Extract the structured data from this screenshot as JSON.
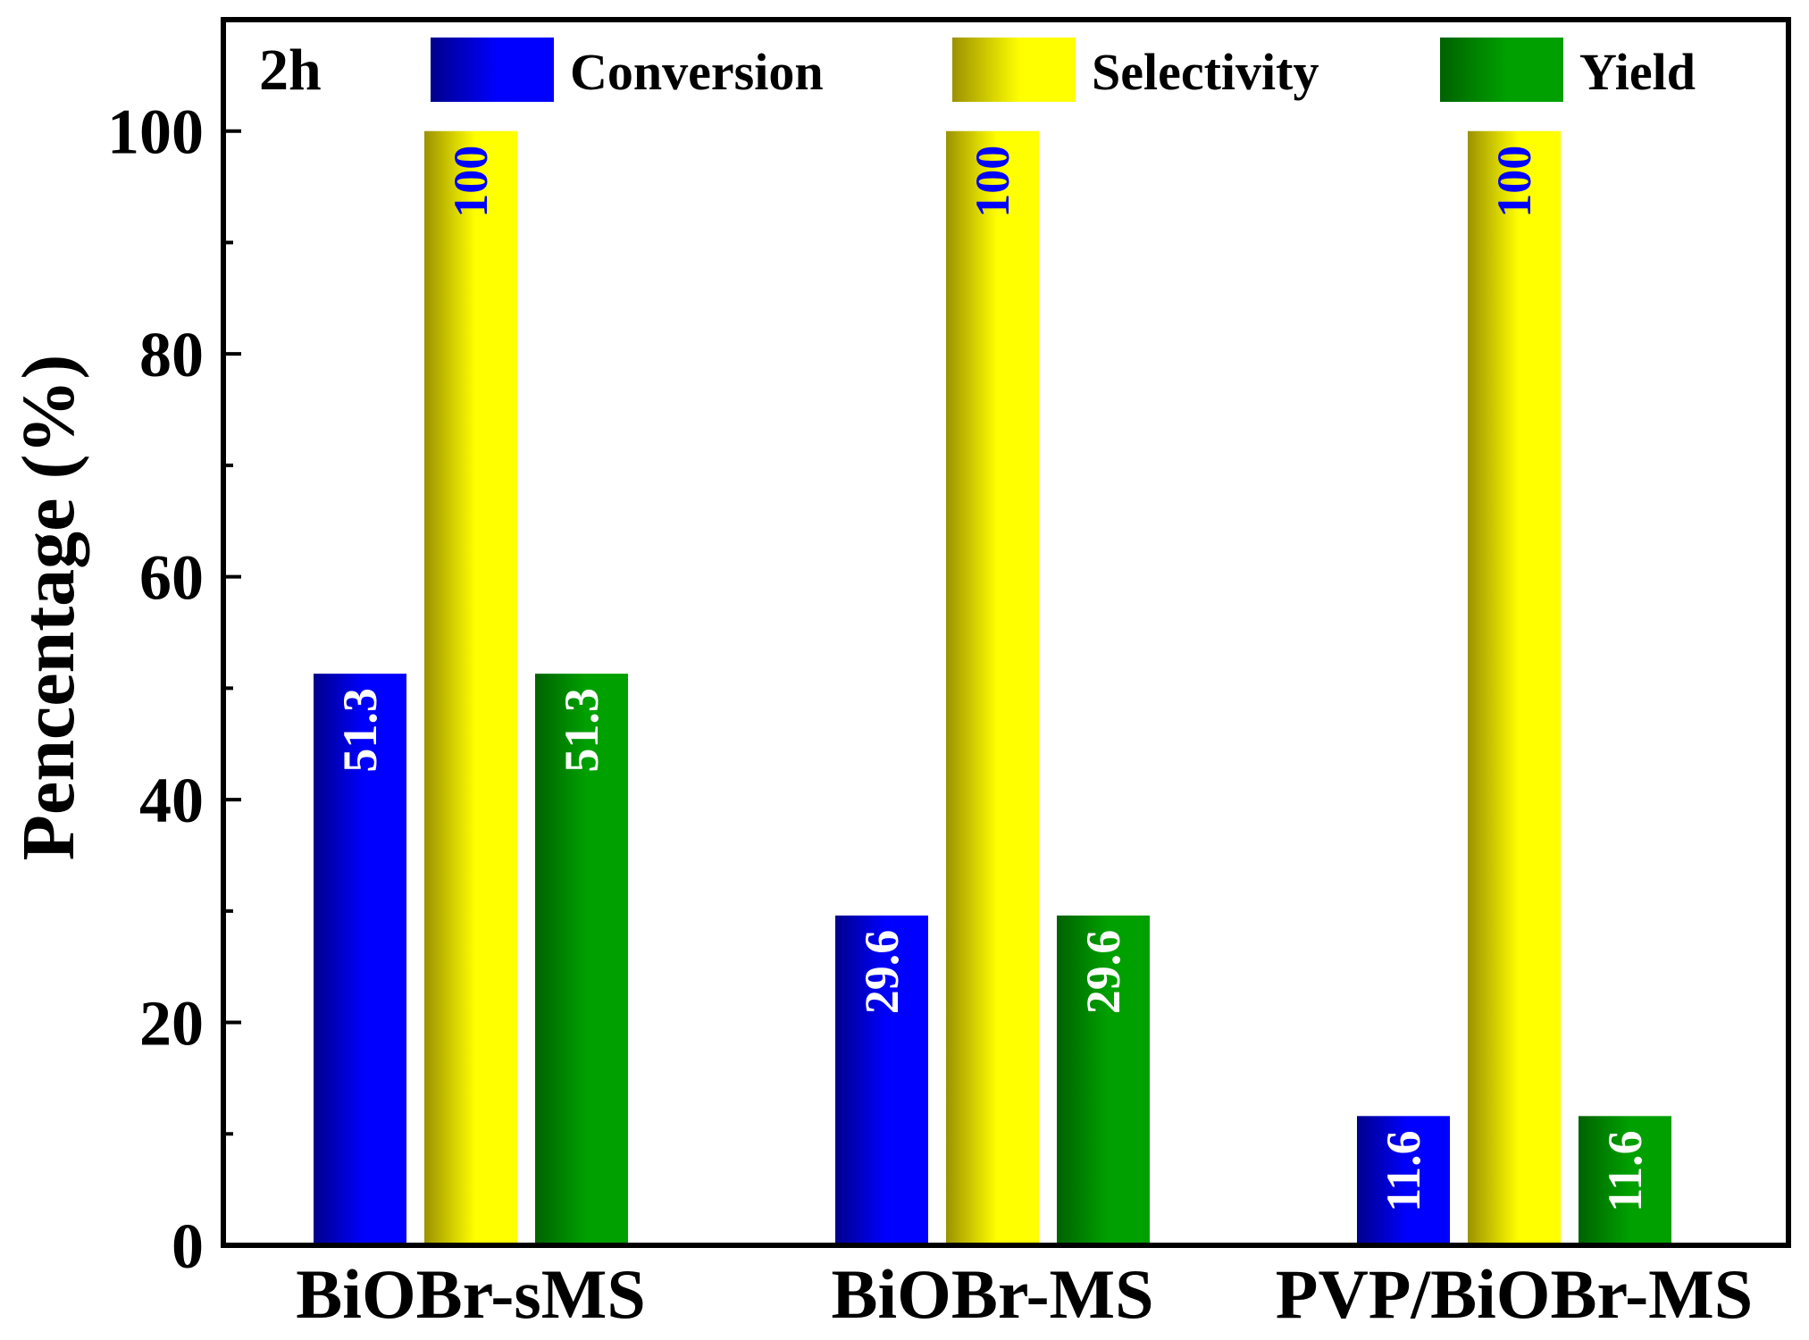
{
  "chart_data": {
    "type": "bar",
    "panel_label": "2h",
    "ylabel": "Pencentage (%)",
    "xlabel": "",
    "ylim": [
      0,
      110
    ],
    "yticks": [
      0,
      20,
      40,
      60,
      80,
      100
    ],
    "categories": [
      "BiOBr-sMS",
      "BiOBr-MS",
      "PVP/BiOBr-MS"
    ],
    "series": [
      {
        "name": "Conversion",
        "values": [
          51.3,
          29.6,
          11.6
        ],
        "labels": [
          "51.3",
          "29.6",
          "11.6"
        ],
        "color": "#0000ff",
        "dark": "#00008c",
        "label_color": "#ffffff"
      },
      {
        "name": "Selectivity",
        "values": [
          100,
          100,
          100
        ],
        "labels": [
          "100",
          "100",
          "100"
        ],
        "color": "#ffff00",
        "dark": "#9c9200",
        "label_color": "#0000ff"
      },
      {
        "name": "Yield",
        "values": [
          51.3,
          29.6,
          11.6
        ],
        "labels": [
          "51.3",
          "29.6",
          "11.6"
        ],
        "color": "#00a000",
        "dark": "#006200",
        "label_color": "#ffffff"
      }
    ],
    "legend_position": "top",
    "grid": false
  }
}
